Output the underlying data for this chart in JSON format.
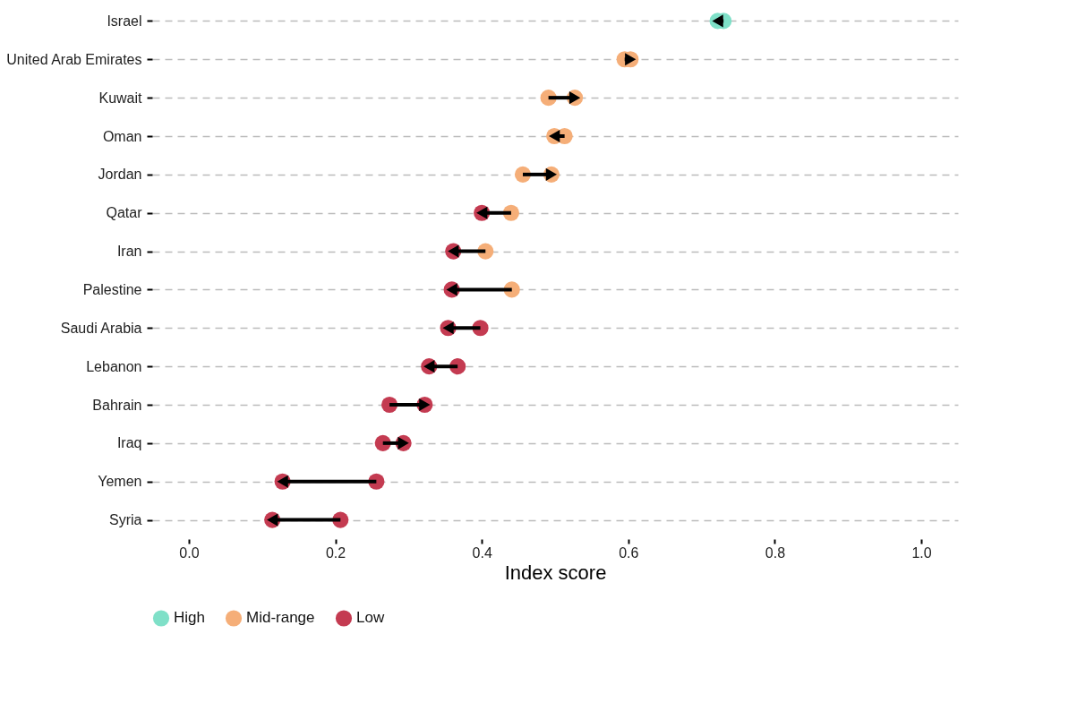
{
  "chart_data": {
    "type": "scatter",
    "orientation": "horizontal",
    "xlabel": "Index score",
    "categories": [
      "Israel",
      "United Arab Emirates",
      "Kuwait",
      "Oman",
      "Jordan",
      "Qatar",
      "Iran",
      "Palestine",
      "Saudi Arabia",
      "Lebanon",
      "Bahrain",
      "Iraq",
      "Yemen",
      "Syria"
    ],
    "series": [
      {
        "name": "High",
        "color": "#7fe0c8",
        "values": [
          0.722,
          null,
          null,
          null,
          null,
          null,
          null,
          null,
          null,
          null,
          null,
          null,
          null,
          null
        ]
      },
      {
        "name": "Mid-range",
        "color": "#f5ae78",
        "values": [
          null,
          0.603,
          0.527,
          0.499,
          0.495,
          null,
          null,
          null,
          null,
          null,
          null,
          null,
          null,
          null
        ]
      },
      {
        "name": "Low",
        "color": "#c43b51",
        "values": [
          null,
          null,
          null,
          null,
          null,
          0.4,
          0.361,
          0.359,
          0.354,
          0.328,
          0.322,
          0.293,
          0.128,
          0.114
        ]
      },
      {
        "color": "#7fe0c8",
        "values": [
          0.73,
          null,
          null,
          null,
          null,
          null,
          null,
          null,
          null,
          null,
          null,
          null,
          null,
          null
        ]
      },
      {
        "color": "#f5ae78",
        "values": [
          null,
          0.595,
          0.491,
          0.513,
          0.456,
          0.44,
          0.405,
          0.441,
          null,
          null,
          null,
          null,
          null,
          null
        ]
      },
      {
        "color": "#c43b51",
        "values": [
          null,
          null,
          null,
          null,
          null,
          null,
          null,
          null,
          0.398,
          0.367,
          0.274,
          0.265,
          0.256,
          0.207
        ]
      }
    ],
    "xlim": [
      -0.05,
      1.05
    ],
    "xticks": [
      {
        "value": 0,
        "label": "0.0"
      },
      {
        "value": 0.2,
        "label": "0.2"
      },
      {
        "value": 0.4,
        "label": "0.4"
      },
      {
        "value": 0.6,
        "label": "0.6"
      },
      {
        "value": 0.8,
        "label": "0.8"
      },
      {
        "value": 1,
        "label": "1.0"
      }
    ],
    "marker": "circle",
    "grid": "y",
    "legend": "bottom"
  }
}
